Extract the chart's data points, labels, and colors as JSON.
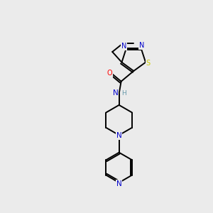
{
  "bg_color": "#ebebeb",
  "bond_color": "#000000",
  "atom_colors": {
    "N": "#0000cc",
    "S": "#cccc00",
    "O": "#ff0000",
    "H": "#6699aa",
    "C": "#000000"
  },
  "figsize": [
    3.0,
    3.0
  ],
  "dpi": 100
}
